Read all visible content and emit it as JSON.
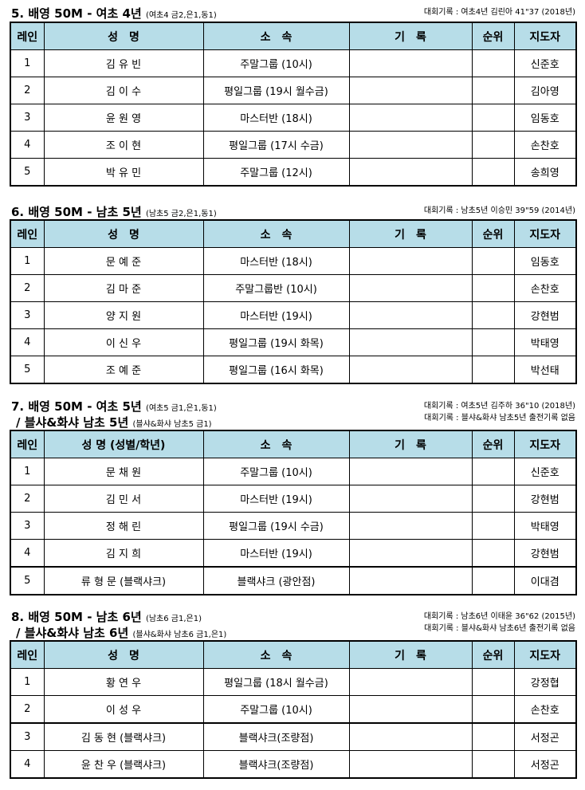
{
  "headers": [
    "레인",
    "성　명",
    "소　속",
    "기　록",
    "순위",
    "지도자"
  ],
  "header3": "성 명 (성별/학년)",
  "sections": [
    {
      "title": "5. 배영 50M - 여초 4년",
      "sub": "(여초4 금2,은1,동1)",
      "records": [
        "대회기록 : 여초4년 김린아 41\"37 (2018년)"
      ],
      "rows": [
        [
          "1",
          "김 유 빈",
          "주말그룹 (10시)",
          "",
          "",
          "신준호"
        ],
        [
          "2",
          "김 이 수",
          "평일그룹 (19시 월수금)",
          "",
          "",
          "김아영"
        ],
        [
          "3",
          "윤 원 영",
          "마스터반 (18시)",
          "",
          "",
          "임동호"
        ],
        [
          "4",
          "조 이 현",
          "평일그룹 (17시 수금)",
          "",
          "",
          "손찬호"
        ],
        [
          "5",
          "박 유 민",
          "주말그룹 (12시)",
          "",
          "",
          "송희영"
        ]
      ]
    },
    {
      "title": "6. 배영 50M - 남초 5년",
      "sub": "(남초5 금2,은1,동1)",
      "records": [
        "대회기록 : 남초5년 이승민 39\"59 (2014년)"
      ],
      "rows": [
        [
          "1",
          "문 예 준",
          "마스터반 (18시)",
          "",
          "",
          "임동호"
        ],
        [
          "2",
          "김 마 준",
          "주말그룹반 (10시)",
          "",
          "",
          "손찬호"
        ],
        [
          "3",
          "양 지 원",
          "마스터반 (19시)",
          "",
          "",
          "강현범"
        ],
        [
          "4",
          "이 신 우",
          "평일그룹 (19시 화목)",
          "",
          "",
          "박태영"
        ],
        [
          "5",
          "조 예 준",
          "평일그룹 (16시 화목)",
          "",
          "",
          "박선태"
        ]
      ]
    },
    {
      "title": "7. 배영 50M - 여초 5년",
      "sub": "(여초5 금1,은1,동1)",
      "title2": "/ 블샤&화샤 남초 5년",
      "sub2": "(블샤&화샤 남초5 금1)",
      "records": [
        "대회기록 : 여초5년 김주하 36\"10 (2018년)",
        "대회기록 : 블샤&화샤 남초5년 출전기록 없음"
      ],
      "rows": [
        [
          "1",
          "문 채 원",
          "주말그룹 (10시)",
          "",
          "",
          "신준호"
        ],
        [
          "2",
          "김 민 서",
          "마스터반 (19시)",
          "",
          "",
          "강현범"
        ],
        [
          "3",
          "정 해 린",
          "평일그룹 (19시 수금)",
          "",
          "",
          "박태영"
        ],
        [
          "4",
          "김 지 희",
          "마스터반 (19시)",
          "",
          "",
          "강현범"
        ],
        [
          "5",
          "류 형 문 (블랙샤크)",
          "블랙샤크 (광안점)",
          "",
          "",
          "이대겸"
        ]
      ]
    },
    {
      "title": "8. 배영 50M - 남초 6년",
      "sub": "(남초6 금1,은1)",
      "title2": "/ 블샤&화샤 남초 6년",
      "sub2": "(블샤&화샤 남초6 금1,은1)",
      "records": [
        "대회기록 : 남초6년 이태윤 36\"62 (2015년)",
        "대회기록 : 블샤&화샤 남초6년 출전기록 없음"
      ],
      "rows": [
        [
          "1",
          "황 연 우",
          "평일그룹 (18시 월수금)",
          "",
          "",
          "강정협"
        ],
        [
          "2",
          "이 성 우",
          "주말그룹 (10시)",
          "",
          "",
          "손찬호"
        ],
        [
          "3",
          "김 동 현 (블랙샤크)",
          "블랙샤크(조량점)",
          "",
          "",
          "서정곤"
        ],
        [
          "4",
          "윤 찬 우 (블랙샤크)",
          "블랙샤크(조량점)",
          "",
          "",
          "서정곤"
        ]
      ]
    }
  ]
}
